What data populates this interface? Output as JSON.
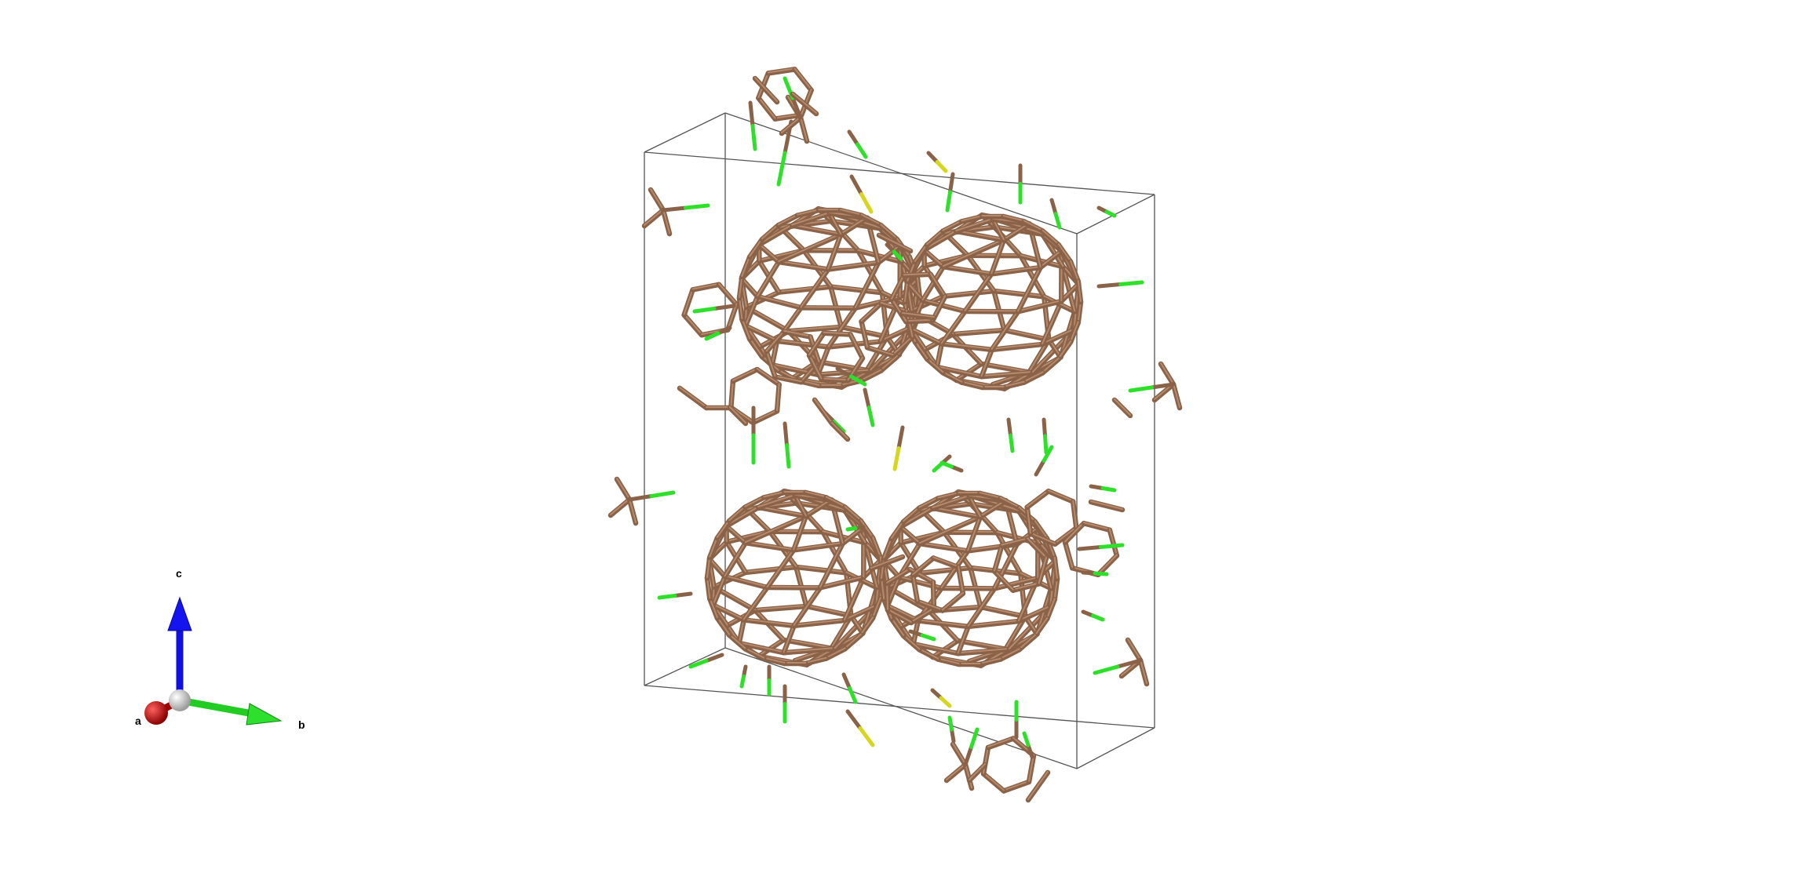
{
  "viewer": {
    "background": "#ffffff",
    "bond_color": "#8a6248",
    "bond_highlight": "#b58a6c",
    "fluorine_color": "#2fe02a",
    "sulfur_color": "#d6d61f",
    "cell_line_color": "#555555"
  },
  "axes": {
    "a_label": "a",
    "b_label": "b",
    "c_label": "c",
    "a_color": "#c00000",
    "b_color": "#22cc22",
    "c_color": "#1010e0",
    "origin_color": "#cfcfcf"
  }
}
